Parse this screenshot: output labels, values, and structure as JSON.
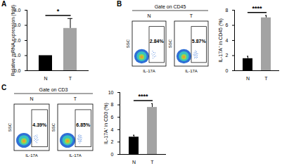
{
  "chart_data": [
    {
      "panel": "A",
      "type": "bar",
      "categories": [
        "N",
        "T"
      ],
      "values": [
        1,
        2.8
      ],
      "errors": [
        0,
        0.65
      ],
      "colors": [
        "#000000",
        "#a3a3a3"
      ],
      "ylim": [
        0,
        4
      ],
      "yticks": [
        0,
        1,
        2,
        3,
        4
      ],
      "y_label": "Relative mRNA expression (fold)",
      "significance": "*"
    },
    {
      "panel": "B",
      "type": "flow",
      "title": "Gate on CD45",
      "x_label": "IL-17A",
      "y_label": "SSC",
      "categories": [
        "N",
        "T"
      ],
      "values": [
        2.84,
        5.87
      ],
      "value_labels": [
        "2.84%",
        "5.87%"
      ]
    },
    {
      "type": "bar",
      "categories": [
        "N",
        "T"
      ],
      "values": [
        1.6,
        7.0
      ],
      "errors": [
        0.3,
        0.3
      ],
      "colors": [
        "#000000",
        "#a3a3a3"
      ],
      "ylim": [
        0,
        8
      ],
      "yticks": [
        0,
        2,
        4,
        6,
        8
      ],
      "y_label": "IL-17A⁺ in CD45 (%)",
      "significance": "****"
    },
    {
      "panel": "C",
      "type": "flow",
      "title": "Gate on CD3",
      "x_label": "IL-17A",
      "y_label": "SSC",
      "categories": [
        "N",
        "T"
      ],
      "values": [
        4.39,
        6.85
      ],
      "value_labels": [
        "4.39%",
        "6.85%"
      ]
    },
    {
      "type": "bar",
      "categories": [
        "N",
        "T"
      ],
      "values": [
        2.8,
        7.6
      ],
      "errors": [
        0.3,
        0.6
      ],
      "colors": [
        "#000000",
        "#a3a3a3"
      ],
      "ylim": [
        0,
        10
      ],
      "yticks": [
        0,
        2,
        4,
        6,
        8,
        10
      ],
      "y_label": "IL-17A⁺ in CD3 (%)",
      "significance": "****"
    }
  ]
}
